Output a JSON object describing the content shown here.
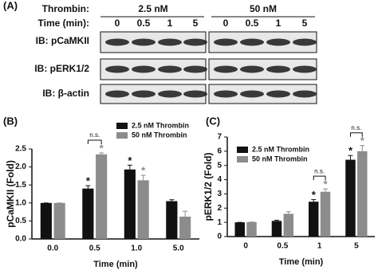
{
  "panel_a": {
    "label": "(A)",
    "thrombin_label": "Thrombin:",
    "doses": [
      "2.5 nM",
      "50 nM"
    ],
    "time_label": "Time (min):",
    "times": [
      "0",
      "0.5",
      "1",
      "5",
      "0",
      "0.5",
      "1",
      "5"
    ],
    "rows": [
      "IB: pCaMKII",
      "IB: pERK1/2",
      "IB: β-actin"
    ]
  },
  "chart_data": [
    {
      "type": "bar",
      "title": "(B)",
      "y_label": "pCaMKII (Fold)",
      "x_label": "Time (min)",
      "categories": [
        "0.0",
        "0.5",
        "1.0",
        "5.0"
      ],
      "series": [
        {
          "name": "2.5 nM Thrombin",
          "color": "#111111",
          "values": [
            1,
            1.4,
            1.93,
            1.05
          ],
          "errors": [
            0,
            0.08,
            0.12,
            0.04
          ],
          "markers": [
            null,
            "*",
            "*",
            null
          ]
        },
        {
          "name": "50 nM Thrombin",
          "color": "#8c8c8c",
          "values": [
            1,
            2.35,
            1.63,
            0.62
          ],
          "errors": [
            0,
            0.04,
            0.14,
            0.15
          ],
          "markers": [
            null,
            "*",
            "*",
            null
          ]
        }
      ],
      "ylim": [
        0,
        2.5
      ],
      "yticks": [
        {
          "value": 0,
          "label": "0.0"
        },
        0.5,
        {
          "value": 1,
          "label": "1.0"
        },
        1.5,
        {
          "value": 2,
          "label": "2.0"
        },
        2.5
      ],
      "legend": "top",
      "brackets": [
        {
          "category": "0.5",
          "label": "n.s."
        }
      ]
    },
    {
      "type": "bar",
      "title": "(C)",
      "y_label": "pERK1/2 (Fold)",
      "x_label": "Time (min)",
      "categories": [
        "0",
        "0.5",
        "1",
        "5"
      ],
      "series": [
        {
          "name": "2.5 nM Thrombin",
          "color": "#111111",
          "values": [
            1,
            1.1,
            2.45,
            5.4
          ],
          "errors": [
            0,
            0.05,
            0.15,
            0.3
          ],
          "markers": [
            null,
            null,
            "*",
            "*"
          ]
        },
        {
          "name": "50 nM Thrombin",
          "color": "#8c8c8c",
          "values": [
            1.02,
            1.6,
            3.15,
            6.0
          ],
          "errors": [
            0,
            0.15,
            0.2,
            0.4
          ],
          "markers": [
            null,
            null,
            "*",
            "*"
          ]
        }
      ],
      "ylim": [
        0,
        7
      ],
      "yticks": [
        0,
        1,
        2,
        3,
        4,
        5,
        6,
        7
      ],
      "legend": "upper left",
      "brackets": [
        {
          "category": "1",
          "label": "n.s."
        },
        {
          "category": "5",
          "label": "n.s."
        }
      ]
    }
  ]
}
